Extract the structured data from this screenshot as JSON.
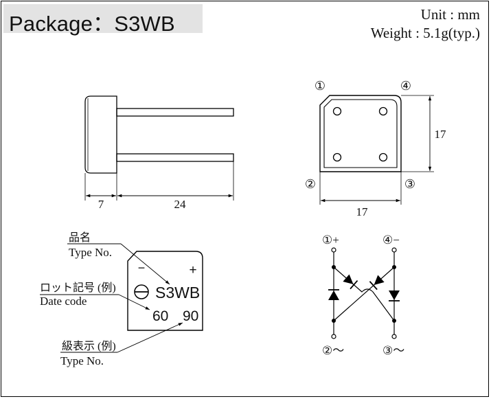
{
  "header": {
    "title": "Package：S3WB",
    "unit": "Unit : mm",
    "weight": "Weight : 5.1g(typ.)"
  },
  "side_view": {
    "dim_body": "7",
    "dim_leads": "24"
  },
  "top_view": {
    "pin1": "①",
    "pin2": "②",
    "pin3": "③",
    "pin4": "④",
    "dim_height": "17",
    "dim_width": "17"
  },
  "marking": {
    "type_no_jp": "品名",
    "type_no_en": "Type No.",
    "date_code_jp": "ロット記号 (例)",
    "date_code_en": "Date code",
    "grade_jp": "級表示 (例)",
    "grade_en": "Type No.",
    "minus": "−",
    "plus": "+",
    "part_name": "S3WB",
    "date_value": "60",
    "grade_value": "90"
  },
  "circuit": {
    "pin1_label": "①+",
    "pin4_label": "④−",
    "pin2_label": "②～",
    "pin3_label": "③～"
  }
}
